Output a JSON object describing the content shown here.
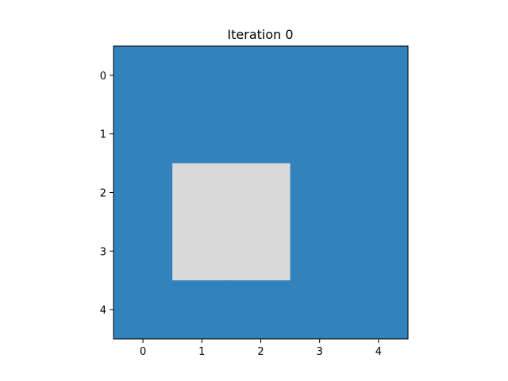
{
  "chart_data": {
    "type": "heatmap",
    "title": "Iteration 0",
    "xlabel": "",
    "ylabel": "",
    "x_ticks": [
      0,
      1,
      2,
      3,
      4
    ],
    "y_ticks": [
      0,
      1,
      2,
      3,
      4
    ],
    "xlim": [
      -0.5,
      4.5
    ],
    "ylim": [
      4.5,
      -0.5
    ],
    "grid": false,
    "colors": {
      "0": "#3282bd",
      "1": "#d9d9d9"
    },
    "values": [
      [
        0,
        0,
        0,
        0,
        0
      ],
      [
        0,
        0,
        0,
        0,
        0
      ],
      [
        0,
        1,
        1,
        0,
        0
      ],
      [
        0,
        1,
        1,
        0,
        0
      ],
      [
        0,
        0,
        0,
        0,
        0
      ]
    ]
  }
}
